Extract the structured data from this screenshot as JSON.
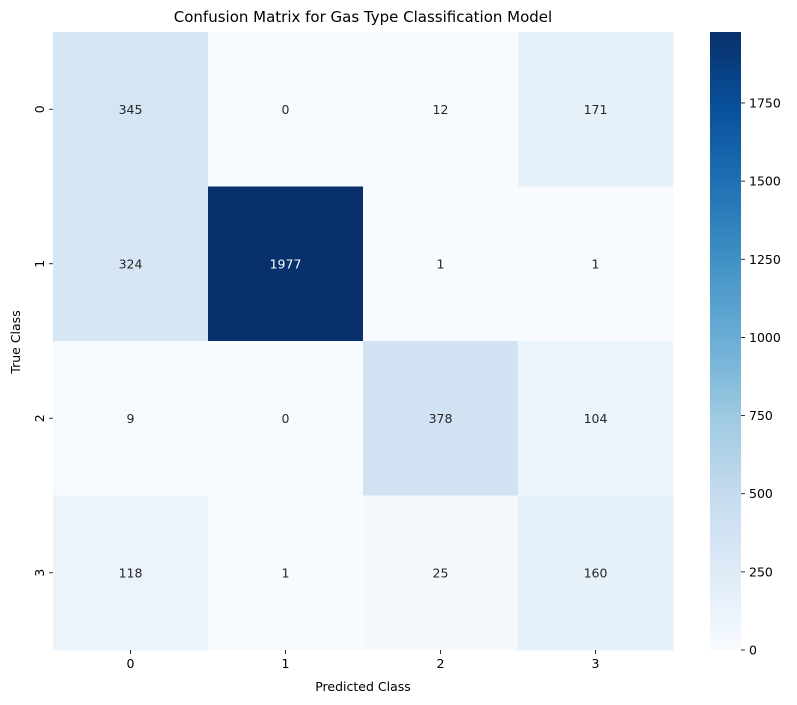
{
  "chart_data": {
    "type": "heatmap",
    "title": "Confusion Matrix for Gas Type Classification Model",
    "xlabel": "Predicted Class",
    "ylabel": "True Class",
    "x_categories": [
      "0",
      "1",
      "2",
      "3"
    ],
    "y_categories": [
      "0",
      "1",
      "2",
      "3"
    ],
    "values": [
      [
        345,
        0,
        12,
        171
      ],
      [
        324,
        1977,
        1,
        1
      ],
      [
        9,
        0,
        378,
        104
      ],
      [
        118,
        1,
        25,
        160
      ]
    ],
    "colorbar": {
      "min": 0,
      "max": 1977,
      "ticks": [
        0,
        250,
        500,
        750,
        1000,
        1250,
        1500,
        1750
      ],
      "colormap": "Blues"
    },
    "annotations": true
  }
}
